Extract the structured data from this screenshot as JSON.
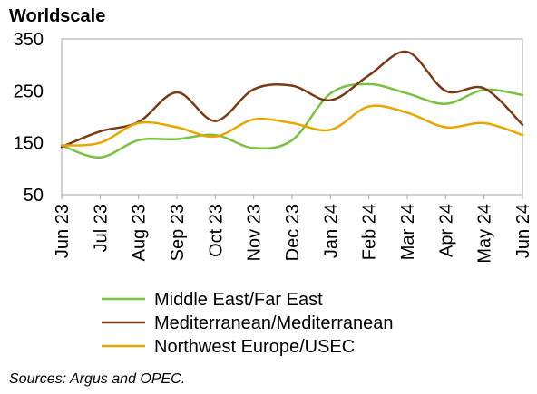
{
  "chart_data": {
    "type": "line",
    "title": "Worldscale",
    "categories": [
      "Jun 23",
      "Jul 23",
      "Aug 23",
      "Sep 23",
      "Oct 23",
      "Nov 23",
      "Dec 23",
      "Jan 24",
      "Feb 24",
      "Mar 24",
      "Apr 24",
      "May 24",
      "Jun 24"
    ],
    "ylim": [
      50,
      350
    ],
    "yticks": [
      50,
      150,
      250,
      350
    ],
    "grid": false,
    "legend_position": "bottom",
    "series": [
      {
        "name": "Middle East/Far East",
        "color": "#7ac143",
        "values": [
          145,
          122,
          155,
          157,
          165,
          140,
          155,
          245,
          263,
          245,
          225,
          252,
          242
        ]
      },
      {
        "name": "Mediterranean/Mediterranean",
        "color": "#7a3a16",
        "values": [
          142,
          172,
          190,
          247,
          192,
          253,
          260,
          232,
          280,
          325,
          250,
          255,
          185
        ]
      },
      {
        "name": "Northwest Europe/USEC",
        "color": "#e8a600",
        "values": [
          145,
          150,
          188,
          180,
          162,
          195,
          188,
          175,
          220,
          208,
          180,
          188,
          165
        ]
      }
    ],
    "source": "Sources: Argus and OPEC."
  }
}
